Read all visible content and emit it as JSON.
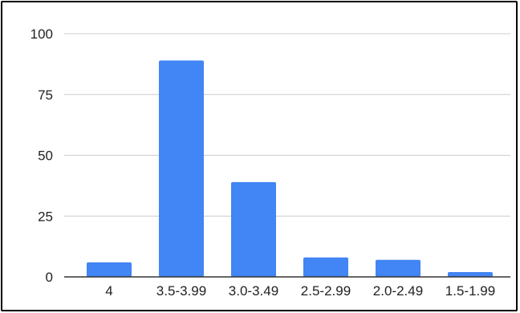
{
  "chart_data": {
    "type": "bar",
    "title": "",
    "xlabel": "",
    "ylabel": "",
    "categories": [
      "4",
      "3.5-3.99",
      "3.0-3.49",
      "2.5-2.99",
      "2.0-2.49",
      "1.5-1.99"
    ],
    "values": [
      6,
      89,
      39,
      8,
      7,
      2
    ],
    "ylim": [
      0,
      100
    ],
    "yticks": [
      "0",
      "25",
      "50",
      "75",
      "100"
    ],
    "grid": true,
    "legend": "none",
    "bar_color": "#4285f4",
    "grid_color": "#cccccc",
    "axis_color": "#333333"
  }
}
